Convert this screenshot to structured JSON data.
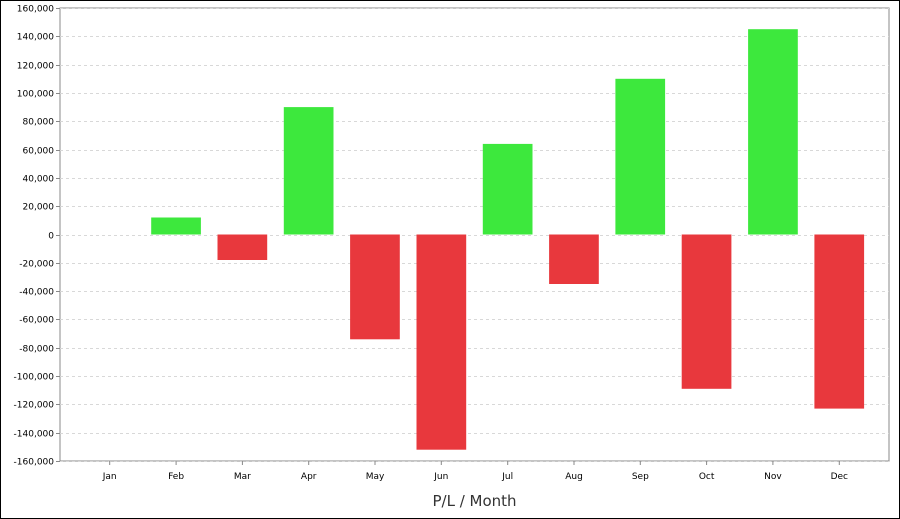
{
  "chart_data": {
    "type": "bar",
    "title": "",
    "xlabel": "P/L / Month",
    "ylabel": "",
    "categories": [
      "Jan",
      "Feb",
      "Mar",
      "Apr",
      "May",
      "Jun",
      "Jul",
      "Aug",
      "Sep",
      "Oct",
      "Nov",
      "Dec"
    ],
    "values": [
      0,
      12000,
      -18000,
      90000,
      -74000,
      -152000,
      64000,
      -35000,
      110000,
      -109000,
      145000,
      -123000
    ],
    "ylim": [
      -160000,
      160000
    ],
    "yticks": [
      160000,
      140000,
      120000,
      100000,
      80000,
      60000,
      40000,
      20000,
      0,
      -20000,
      -40000,
      -60000,
      -80000,
      -100000,
      -120000,
      -140000,
      -160000
    ],
    "ytick_labels": [
      "160,000",
      "140,000",
      "120,000",
      "100,000",
      "80,000",
      "60,000",
      "40,000",
      "20,000",
      "0",
      "-20,000",
      "-40,000",
      "-60,000",
      "-80,000",
      "-100,000",
      "-120,000",
      "-140,000",
      "-160,000"
    ],
    "grid": true,
    "positive_color": "#3de83d",
    "negative_color": "#e8383d",
    "grid_color": "#d8d8d8"
  }
}
